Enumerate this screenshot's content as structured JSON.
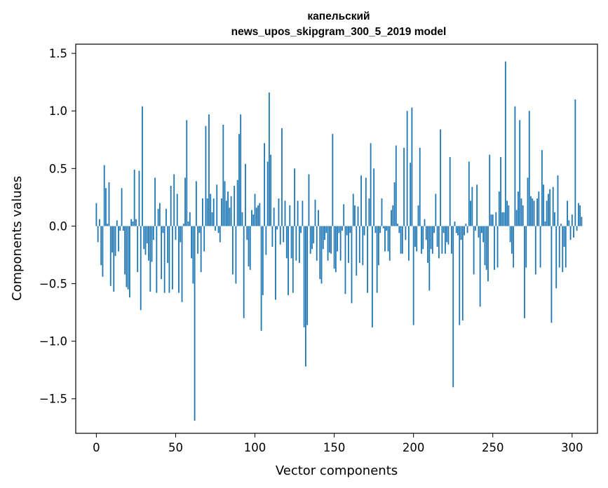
{
  "chart_data": {
    "type": "bar",
    "title": "капельский\nnews_upos_skipgram_300_5_2019 model",
    "title_lines": [
      "капельский",
      "news_upos_skipgram_300_5_2019 model"
    ],
    "xlabel": "Vector components",
    "ylabel": "Components values",
    "xlim": [
      -13,
      316
    ],
    "ylim": [
      -1.8,
      1.58
    ],
    "xticks": [
      0,
      50,
      100,
      150,
      200,
      250,
      300
    ],
    "yticks": [
      -1.5,
      -1.0,
      -0.5,
      0.0,
      0.5,
      1.0,
      1.5
    ],
    "ytick_labels": [
      "−1.5",
      "−1.0",
      "−0.5",
      "0.0",
      "0.5",
      "1.0",
      "1.5"
    ],
    "grid": false,
    "bar_color": "#1f77b4",
    "x_start": 0,
    "values": [
      0.2,
      -0.14,
      0.06,
      -0.34,
      -0.44,
      0.53,
      0.33,
      0.02,
      0.38,
      -0.52,
      -0.23,
      -0.57,
      -0.26,
      0.05,
      -0.22,
      -0.04,
      0.33,
      -0.04,
      -0.42,
      -0.53,
      -0.55,
      -0.62,
      0.06,
      0.04,
      0.49,
      0.06,
      -0.4,
      0.48,
      -0.73,
      1.04,
      -0.2,
      -0.25,
      -0.15,
      -0.3,
      -0.57,
      -0.31,
      -0.12,
      0.42,
      -0.58,
      0.15,
      0.2,
      -0.46,
      -0.06,
      -0.58,
      0.15,
      -0.32,
      -0.58,
      0.35,
      -0.55,
      0.45,
      -0.12,
      0.28,
      -0.58,
      -0.14,
      -0.66,
      0.02,
      0.42,
      0.92,
      0.04,
      0.12,
      -0.28,
      -0.5,
      -1.69,
      0.39,
      -0.24,
      -0.06,
      -0.4,
      0.24,
      -0.22,
      0.87,
      0.24,
      0.97,
      0.28,
      0.12,
      0.24,
      -0.04,
      0.36,
      -0.06,
      -0.14,
      0.24,
      0.88,
      0.39,
      0.22,
      0.3,
      0.16,
      0.26,
      -0.42,
      0.35,
      -0.5,
      0.4,
      0.8,
      0.97,
      0.12,
      -0.8,
      0.54,
      -0.12,
      -0.35,
      -0.38,
      0.14,
      0.1,
      0.28,
      0.16,
      0.18,
      0.2,
      -0.91,
      -0.6,
      0.72,
      -0.25,
      0.56,
      1.16,
      0.62,
      -0.18,
      0.16,
      -0.64,
      -0.03,
      0.24,
      -0.16,
      0.85,
      -0.14,
      0.22,
      -0.28,
      -0.6,
      0.18,
      -0.28,
      -0.58,
      0.5,
      -0.3,
      0.22,
      -0.32,
      -0.06,
      0.22,
      -0.88,
      -1.22,
      -0.86,
      0.45,
      -0.24,
      -0.2,
      -0.15,
      0.23,
      -0.3,
      0.14,
      -0.46,
      -0.5,
      -0.2,
      -0.12,
      -0.06,
      -0.3,
      -0.23,
      -0.24,
      0.8,
      -0.37,
      -0.4,
      -0.22,
      -0.06,
      -0.3,
      -0.04,
      0.19,
      -0.59,
      -0.08,
      -0.32,
      -0.06,
      -0.67,
      0.28,
      0.18,
      -0.43,
      0.17,
      -0.32,
      0.44,
      -0.34,
      -0.08,
      0.42,
      -0.58,
      0.24,
      0.72,
      -0.88,
      0.5,
      -0.06,
      -0.58,
      -0.34,
      -0.06,
      0.24,
      -0.02,
      -0.22,
      -0.04,
      -0.22,
      -0.3,
      0.14,
      0.18,
      0.38,
      0.7,
      0.02,
      -0.06,
      -0.24,
      -0.24,
      0.68,
      -0.12,
      1.0,
      -0.3,
      0.55,
      1.03,
      -0.86,
      -0.18,
      -0.22,
      0.18,
      0.68,
      -0.24,
      -0.2,
      0.06,
      -0.12,
      -0.32,
      -0.56,
      -0.2,
      -0.24,
      -0.06,
      0.28,
      -0.18,
      -0.28,
      0.84,
      -0.24,
      -0.06,
      -0.24,
      -0.14,
      -0.16,
      0.6,
      -0.24,
      -1.4,
      0.04,
      -0.06,
      -0.08,
      -0.86,
      -0.12,
      -0.82,
      -0.08,
      0.02,
      -0.06,
      0.56,
      0.22,
      0.34,
      -0.42,
      -0.04,
      0.36,
      -0.1,
      -0.7,
      -0.06,
      -0.14,
      -0.34,
      -0.38,
      -0.48,
      0.62,
      0.1,
      0.1,
      -0.38,
      0.12,
      -0.36,
      0.3,
      0.6,
      0.12,
      0.12,
      1.43,
      0.22,
      0.18,
      -0.14,
      -0.24,
      -0.36,
      1.04,
      0.14,
      0.3,
      0.92,
      0.24,
      0.18,
      -0.8,
      -0.36,
      0.42,
      1.0,
      0.26,
      0.24,
      0.22,
      -0.42,
      0.24,
      0.3,
      -0.36,
      0.66,
      0.36,
      0.04,
      0.22,
      0.28,
      0.32,
      -0.84,
      0.34,
      0.12,
      -0.54,
      0.44,
      -0.36,
      0.02,
      -0.4,
      -0.18,
      -0.36,
      0.22,
      0.05,
      -0.12,
      0.1,
      -0.1,
      1.1,
      -0.04,
      0.2,
      0.18,
      0.08
    ],
    "notable_values": {
      "max": 1.43,
      "min": -1.69
    }
  }
}
